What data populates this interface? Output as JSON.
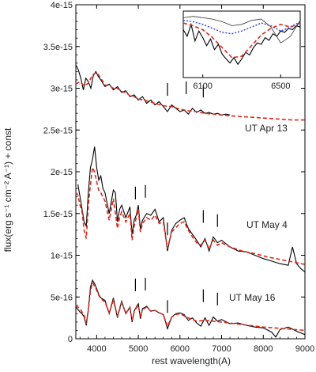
{
  "chart_data": [
    {
      "type": "line",
      "title": "",
      "xlabel": "rest wavelength(A)",
      "ylabel": "flux(erg s⁻¹ cm⁻² A⁻¹) + const",
      "xlim": [
        3500,
        9000
      ],
      "ylim": [
        0,
        4e-15
      ],
      "x_ticks": [
        4000,
        5000,
        6000,
        7000,
        8000,
        9000
      ],
      "x_tick_labels": [
        "4000",
        "5000",
        "6000",
        "7000",
        "8000",
        "9000"
      ],
      "y_ticks": [
        0,
        5e-16,
        1e-15,
        1.5e-15,
        2e-15,
        2.5e-15,
        3e-15,
        3.5e-15,
        4e-15
      ],
      "y_tick_labels": [
        "0",
        "5e-16",
        "1e-15",
        "1.5e-15",
        "2e-15",
        "2.5e-15",
        "3e-15",
        "3.5e-15",
        "4e-15"
      ],
      "grid": false,
      "legend": "none",
      "colors": {
        "observed": "#000000",
        "model": "#e0281c"
      },
      "spectra": [
        {
          "epoch": "UT Apr 13",
          "observed": {
            "x": [
              3500,
              3560,
              3620,
              3680,
              3740,
              3800,
              3860,
              3920,
              3980,
              4040,
              4100,
              4200,
              4300,
              4400,
              4500,
              4600,
              4700,
              4800,
              4900,
              5000,
              5100,
              5200,
              5300,
              5400,
              5500,
              5600,
              5700,
              5800,
              5900,
              6000,
              6100,
              6200,
              6300,
              6400,
              6500,
              6600,
              6700,
              6800,
              6900,
              7000,
              7100,
              7200
            ],
            "y": [
              3.28e-15,
              3.22e-15,
              3.12e-15,
              2.98e-15,
              3.12e-15,
              3.08e-15,
              3e-15,
              3.15e-15,
              3.2e-15,
              3.14e-15,
              3.1e-15,
              3.02e-15,
              3.05e-15,
              2.98e-15,
              3.02e-15,
              2.95e-15,
              2.97e-15,
              2.9e-15,
              2.92e-15,
              2.86e-15,
              2.9e-15,
              2.82e-15,
              2.86e-15,
              2.8e-15,
              2.84e-15,
              2.78e-15,
              2.72e-15,
              2.8e-15,
              2.76e-15,
              2.72e-15,
              2.74e-15,
              2.69e-15,
              2.76e-15,
              2.71e-15,
              2.74e-15,
              2.7e-15,
              2.71e-15,
              2.69e-15,
              2.7e-15,
              2.68e-15,
              2.69e-15,
              2.68e-15
            ]
          },
          "model": {
            "x": [
              3500,
              3600,
              3700,
              3800,
              3900,
              4000,
              4100,
              4200,
              4300,
              4400,
              4500,
              4600,
              4700,
              4800,
              4900,
              5000,
              5200,
              5400,
              5600,
              5800,
              6000,
              6200,
              6400,
              6600,
              6800,
              7000,
              7200,
              7500,
              7800,
              8100,
              8400,
              8700,
              9000
            ],
            "y": [
              3.05e-15,
              3.08e-15,
              3.03e-15,
              3.06e-15,
              3.16e-15,
              3.19e-15,
              3.12e-15,
              3.04e-15,
              3.03e-15,
              3e-15,
              3e-15,
              2.96e-15,
              2.95e-15,
              2.91e-15,
              2.9e-15,
              2.87e-15,
              2.85e-15,
              2.82e-15,
              2.79e-15,
              2.78e-15,
              2.75e-15,
              2.73e-15,
              2.72e-15,
              2.7e-15,
              2.69e-15,
              2.68e-15,
              2.67e-15,
              2.66e-15,
              2.65e-15,
              2.64e-15,
              2.63e-15,
              2.62e-15,
              2.62e-15
            ]
          },
          "line_markers": [
            5700,
            6150,
            6560
          ]
        },
        {
          "epoch": "UT May 4",
          "observed": {
            "x": [
              3550,
              3600,
              3650,
              3700,
              3750,
              3800,
              3850,
              3900,
              3950,
              4000,
              4050,
              4100,
              4150,
              4200,
              4300,
              4400,
              4450,
              4500,
              4550,
              4600,
              4700,
              4800,
              4850,
              4900,
              4950,
              5000,
              5050,
              5100,
              5200,
              5300,
              5400,
              5500,
              5600,
              5700,
              5800,
              5900,
              6000,
              6100,
              6200,
              6300,
              6400,
              6500,
              6600,
              6700,
              6800,
              6900,
              7000,
              7200,
              7400,
              7600,
              7800,
              8000,
              8200,
              8400,
              8600,
              8700,
              8800,
              8900,
              9000
            ],
            "y": [
              1.85e-15,
              1.7e-15,
              1.55e-15,
              1.4e-15,
              1.35e-15,
              1.75e-15,
              2.05e-15,
              2.15e-15,
              2.3e-15,
              2.05e-15,
              1.9e-15,
              1.95e-15,
              1.8e-15,
              1.75e-15,
              1.5e-15,
              1.78e-15,
              1.75e-15,
              1.4e-15,
              1.55e-15,
              1.6e-15,
              1.45e-15,
              1.58e-15,
              1.25e-15,
              1.42e-15,
              1.48e-15,
              1.6e-15,
              1.32e-15,
              1.42e-15,
              1.5e-15,
              1.48e-15,
              1.55e-15,
              1.4e-15,
              1.45e-15,
              1.05e-15,
              1.3e-15,
              1.38e-15,
              1.42e-15,
              1.45e-15,
              1.32e-15,
              1.25e-15,
              1.18e-15,
              1.1e-15,
              1.2e-15,
              1.05e-15,
              1.22e-15,
              1.15e-15,
              1.18e-15,
              1.1e-15,
              1.05e-15,
              1.04e-15,
              1e-15,
              9.6e-16,
              9.3e-16,
              9e-16,
              8.8e-16,
              1.1e-15,
              9e-16,
              8.4e-16,
              8e-16
            ]
          },
          "model": {
            "x": [
              3500,
              3550,
              3600,
              3650,
              3700,
              3750,
              3800,
              3850,
              3900,
              3950,
              4000,
              4050,
              4100,
              4200,
              4300,
              4400,
              4500,
              4550,
              4600,
              4700,
              4800,
              4850,
              4900,
              4950,
              5000,
              5050,
              5100,
              5200,
              5300,
              5400,
              5500,
              5600,
              5700,
              5800,
              5900,
              6000,
              6100,
              6200,
              6300,
              6400,
              6500,
              6600,
              6700,
              6800,
              6900,
              7000,
              7200,
              7500,
              7800,
              8100,
              8400,
              8700,
              9000
            ],
            "y": [
              1.75e-15,
              1.72e-15,
              1.6e-15,
              1.52e-15,
              1.3e-15,
              1.2e-15,
              1.6e-15,
              1.85e-15,
              2.05e-15,
              2e-15,
              1.88e-15,
              1.78e-15,
              1.75e-15,
              1.65e-15,
              1.42e-15,
              1.68e-15,
              1.32e-15,
              1.45e-15,
              1.52e-15,
              1.4e-15,
              1.5e-15,
              1.18e-15,
              1.35e-15,
              1.45e-15,
              1.55e-15,
              1.28e-15,
              1.38e-15,
              1.45e-15,
              1.42e-15,
              1.48e-15,
              1.38e-15,
              1.4e-15,
              1.08e-15,
              1.28e-15,
              1.33e-15,
              1.38e-15,
              1.4e-15,
              1.3e-15,
              1.22e-15,
              1.15e-15,
              1.12e-15,
              1.18e-15,
              1.08e-15,
              1.18e-15,
              1.12e-15,
              1.15e-15,
              1.1e-15,
              1.05e-15,
              1.02e-15,
              9.8e-16,
              9.5e-16,
              9.2e-16,
              8.9e-16
            ]
          },
          "line_markers": [
            4930,
            5170,
            5700,
            6560,
            6900
          ]
        },
        {
          "epoch": "UT May 16",
          "observed": {
            "x": [
              3500,
              3600,
              3650,
              3700,
              3750,
              3800,
              3850,
              3900,
              3950,
              4000,
              4050,
              4100,
              4200,
              4300,
              4400,
              4500,
              4550,
              4600,
              4700,
              4800,
              4850,
              4900,
              4950,
              5000,
              5050,
              5100,
              5200,
              5300,
              5400,
              5500,
              5600,
              5700,
              5800,
              5900,
              6000,
              6100,
              6200,
              6300,
              6400,
              6500,
              6600,
              6700,
              6800,
              6900,
              7000,
              7200,
              7400,
              7600,
              7800,
              8000,
              8200,
              8300,
              8400,
              8600,
              8800,
              9000
            ],
            "y": [
              3.8e-16,
              3.2e-16,
              3e-16,
              2.6e-16,
              1.6e-16,
              3.5e-16,
              6.2e-16,
              7e-16,
              6.6e-16,
              6e-16,
              5.3e-16,
              4.9e-16,
              4.6e-16,
              3e-16,
              4.9e-16,
              2.5e-16,
              3.6e-16,
              4.5e-16,
              3e-16,
              3.8e-16,
              2e-16,
              3.3e-16,
              3.8e-16,
              4.2e-16,
              2.4e-16,
              3.6e-16,
              3.9e-16,
              3.3e-16,
              3.4e-16,
              3.1e-16,
              2.9e-16,
              1.2e-16,
              2.6e-16,
              3e-16,
              3.1e-16,
              2.9e-16,
              2.2e-16,
              2.5e-16,
              1.9e-16,
              1.5e-16,
              2.5e-16,
              1.6e-16,
              2.6e-16,
              2.1e-16,
              2.3e-16,
              1.8e-16,
              1.9e-16,
              1.6e-16,
              1.4e-16,
              1.3e-16,
              8e-17,
              2e-17,
              1.1e-16,
              1.4e-16,
              9e-17,
              5e-17
            ]
          },
          "model": {
            "x": [
              3500,
              3600,
              3650,
              3700,
              3750,
              3800,
              3850,
              3900,
              3950,
              4000,
              4050,
              4100,
              4200,
              4300,
              4400,
              4500,
              4550,
              4600,
              4700,
              4800,
              4850,
              4900,
              4950,
              5000,
              5050,
              5100,
              5200,
              5300,
              5400,
              5500,
              5600,
              5700,
              5800,
              5900,
              6000,
              6200,
              6400,
              6600,
              6800,
              7000,
              7500,
              8000,
              8500,
              9000
            ],
            "y": [
              4e-16,
              3.6e-16,
              3.2e-16,
              2.8e-16,
              1.8e-16,
              3.4e-16,
              5.8e-16,
              6.7e-16,
              6.3e-16,
              5.8e-16,
              5.2e-16,
              4.8e-16,
              4.4e-16,
              3.1e-16,
              4.6e-16,
              2.7e-16,
              3.5e-16,
              4.3e-16,
              3.1e-16,
              3.7e-16,
              2.2e-16,
              3.2e-16,
              3.7e-16,
              4e-16,
              2.6e-16,
              3.5e-16,
              3.8e-16,
              3.3e-16,
              3.4e-16,
              3.1e-16,
              2.9e-16,
              1.5e-16,
              2.6e-16,
              2.9e-16,
              3e-16,
              2.5e-16,
              2.1e-16,
              2.2e-16,
              2.1e-16,
              2e-16,
              1.7e-16,
              1.4e-16,
              1.2e-16,
              1e-16
            ]
          },
          "line_markers": [
            4930,
            5170,
            5700,
            6560,
            6900
          ]
        }
      ]
    },
    {
      "type": "line",
      "title": "",
      "inset": true,
      "xlim": [
        6000,
        6600
      ],
      "x_ticks": [
        6100,
        6500
      ],
      "x_tick_labels": [
        "6100",
        "6500"
      ],
      "ylim": [
        0,
        1
      ],
      "legend": "none",
      "colors": {
        "observed": "#000000",
        "model_red": "#e0281c",
        "model_blue": "#2a3fd6",
        "model_thin": "#333333"
      },
      "series": [
        {
          "style": "observed",
          "x": [
            6000,
            6020,
            6040,
            6060,
            6080,
            6100,
            6120,
            6140,
            6160,
            6180,
            6200,
            6220,
            6240,
            6260,
            6280,
            6300,
            6320,
            6340,
            6360,
            6380,
            6400,
            6420,
            6440,
            6460,
            6480,
            6500,
            6520,
            6540,
            6560,
            6580,
            6600
          ],
          "y": [
            0.72,
            0.62,
            0.8,
            0.55,
            0.7,
            0.6,
            0.48,
            0.58,
            0.42,
            0.5,
            0.35,
            0.28,
            0.22,
            0.3,
            0.2,
            0.28,
            0.38,
            0.34,
            0.45,
            0.52,
            0.5,
            0.6,
            0.56,
            0.66,
            0.62,
            0.7,
            0.68,
            0.74,
            0.72,
            0.78,
            0.76
          ]
        },
        {
          "style": "model_red",
          "x": [
            6000,
            6050,
            6100,
            6150,
            6200,
            6250,
            6300,
            6350,
            6400,
            6450,
            6500,
            6550,
            6600
          ],
          "y": [
            0.82,
            0.78,
            0.72,
            0.6,
            0.45,
            0.3,
            0.32,
            0.48,
            0.64,
            0.74,
            0.8,
            0.76,
            0.82
          ]
        },
        {
          "style": "model_blue",
          "x": [
            6000,
            6050,
            6100,
            6150,
            6200,
            6250,
            6300,
            6350,
            6400,
            6450,
            6500,
            6550,
            6600
          ],
          "y": [
            0.86,
            0.84,
            0.8,
            0.74,
            0.68,
            0.66,
            0.7,
            0.76,
            0.82,
            0.78,
            0.7,
            0.76,
            0.84
          ]
        },
        {
          "style": "model_thin",
          "x": [
            6000,
            6050,
            6100,
            6150,
            6200,
            6250,
            6300,
            6350,
            6400,
            6450,
            6500,
            6550,
            6600
          ],
          "y": [
            0.9,
            0.92,
            0.9,
            0.88,
            0.84,
            0.78,
            0.8,
            0.86,
            0.88,
            0.76,
            0.52,
            0.62,
            0.86
          ]
        }
      ]
    }
  ]
}
